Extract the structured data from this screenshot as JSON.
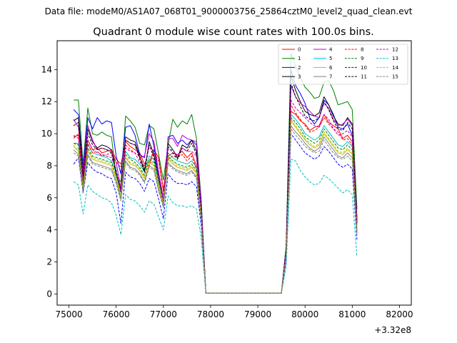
{
  "chart_data": {
    "type": "line",
    "suptitle": "Data file: modeM0/AS1A07_068T01_9000003756_25864cztM0_level2_quad_clean.evt",
    "title": "Quadrant 0 module wise count rates with 100.0s bins.",
    "xlabel": "",
    "ylabel": "",
    "x_offset_label": "+3.32e8",
    "xlim": [
      74750,
      82250
    ],
    "ylim": [
      -0.7,
      15.8
    ],
    "x_ticks": [
      75000,
      76000,
      77000,
      78000,
      79000,
      80000,
      81000,
      82000
    ],
    "x_tick_labels": [
      "75000",
      "76000",
      "77000",
      "78000",
      "79000",
      "80000",
      "81000",
      "82000"
    ],
    "y_ticks": [
      0,
      2,
      4,
      6,
      8,
      10,
      12,
      14
    ],
    "y_tick_labels": [
      "0",
      "2",
      "4",
      "6",
      "8",
      "10",
      "12",
      "14"
    ],
    "legend_position": "top-right",
    "x_start": 75100,
    "x_step": 100,
    "series": [
      {
        "name": "0",
        "color": "#ff0000",
        "dash": "solid",
        "values": [
          9.8,
          9.9,
          7.2,
          9.6,
          9.0,
          9.1,
          8.8,
          8.9,
          9.0,
          8.4,
          8.1,
          9.5,
          9.2,
          9.0,
          8.8,
          8.1,
          8.2,
          9.0,
          8.5,
          6.5,
          8.6,
          8.8,
          8.7,
          8.9,
          8.5,
          8.8,
          8.0,
          5.3,
          0.05,
          0.05,
          0.05,
          0.05,
          0.05,
          0.05,
          0.05,
          0.05,
          0.05,
          0.05,
          0.05,
          0.05,
          0.05,
          0.05,
          0.05,
          0.05,
          0.05,
          2.4,
          11.4,
          11.2,
          10.8,
          10.6,
          10.2,
          10.4,
          10.5,
          11.2,
          10.7,
          10.5,
          10.3,
          9.7,
          9.9,
          9.5,
          4.6
        ]
      },
      {
        "name": "1",
        "color": "#008000",
        "dash": "solid",
        "values": [
          12.1,
          12.1,
          8.1,
          11.6,
          10.0,
          9.9,
          10.1,
          9.9,
          9.8,
          7.3,
          7.0,
          11.1,
          10.8,
          10.4,
          9.4,
          9.3,
          10.5,
          10.3,
          8.7,
          7.1,
          9.3,
          10.9,
          10.4,
          10.8,
          10.6,
          11.2,
          9.7,
          5.9,
          0.05,
          0.05,
          0.05,
          0.05,
          0.05,
          0.05,
          0.05,
          0.05,
          0.05,
          0.05,
          0.05,
          0.05,
          0.05,
          0.05,
          0.05,
          0.05,
          0.05,
          3.0,
          15.0,
          14.2,
          13.5,
          12.9,
          12.6,
          12.2,
          12.3,
          13.2,
          13.3,
          12.7,
          11.8,
          11.9,
          12.0,
          11.5,
          5.3
        ]
      },
      {
        "name": "2",
        "color": "#0000ff",
        "dash": "solid",
        "values": [
          11.5,
          11.2,
          7.8,
          11.0,
          10.3,
          11.0,
          10.6,
          10.8,
          10.7,
          8.6,
          7.5,
          10.4,
          10.5,
          9.9,
          8.7,
          8.5,
          10.6,
          9.2,
          7.3,
          5.4,
          9.8,
          9.9,
          9.4,
          9.6,
          9.3,
          9.6,
          9.3,
          5.8,
          0.05,
          0.05,
          0.05,
          0.05,
          0.05,
          0.05,
          0.05,
          0.05,
          0.05,
          0.05,
          0.05,
          0.05,
          0.05,
          0.05,
          0.05,
          0.05,
          0.05,
          2.9,
          14.0,
          13.0,
          12.5,
          11.9,
          11.0,
          10.6,
          11.0,
          12.1,
          11.8,
          11.2,
          10.4,
          10.3,
          10.6,
          9.9,
          4.8
        ]
      },
      {
        "name": "3",
        "color": "#000000",
        "dash": "solid",
        "values": [
          10.8,
          11.0,
          7.4,
          10.3,
          9.5,
          9.1,
          9.3,
          9.2,
          9.0,
          7.6,
          6.5,
          9.8,
          9.6,
          9.5,
          8.6,
          7.7,
          9.5,
          8.7,
          7.3,
          5.9,
          9.4,
          9.0,
          8.5,
          9.3,
          9.1,
          9.6,
          8.9,
          5.5,
          0.05,
          0.05,
          0.05,
          0.05,
          0.05,
          0.05,
          0.05,
          0.05,
          0.05,
          0.05,
          0.05,
          0.05,
          0.05,
          0.05,
          0.05,
          0.05,
          0.05,
          2.8,
          13.6,
          12.7,
          12.0,
          11.4,
          11.2,
          11.1,
          11.3,
          12.3,
          11.8,
          11.1,
          10.6,
          10.5,
          11.0,
          10.6,
          4.5
        ]
      },
      {
        "name": "4",
        "color": "#bf00bf",
        "dash": "solid",
        "values": [
          10.9,
          10.4,
          7.6,
          10.5,
          9.6,
          9.0,
          9.1,
          9.0,
          8.9,
          8.2,
          6.6,
          9.6,
          9.4,
          9.3,
          8.5,
          8.6,
          10.0,
          9.5,
          7.6,
          6.0,
          9.7,
          9.7,
          9.2,
          9.9,
          9.7,
          9.6,
          9.5,
          5.6,
          0.05,
          0.05,
          0.05,
          0.05,
          0.05,
          0.05,
          0.05,
          0.05,
          0.05,
          0.05,
          0.05,
          0.05,
          0.05,
          0.05,
          0.05,
          0.05,
          0.05,
          2.8,
          13.0,
          12.3,
          11.9,
          11.7,
          11.4,
          11.1,
          11.0,
          11.9,
          11.6,
          10.9,
          10.5,
          10.6,
          10.9,
          10.5,
          4.6
        ]
      },
      {
        "name": "5",
        "color": "#00bfbf",
        "dash": "solid",
        "values": [
          9.4,
          9.4,
          6.8,
          9.3,
          8.8,
          8.7,
          8.6,
          8.5,
          8.3,
          7.6,
          6.3,
          8.9,
          8.5,
          8.4,
          8.1,
          7.6,
          8.6,
          8.4,
          7.0,
          5.9,
          8.8,
          8.5,
          8.3,
          8.2,
          8.1,
          8.3,
          7.9,
          5.0,
          0.05,
          0.05,
          0.05,
          0.05,
          0.05,
          0.05,
          0.05,
          0.05,
          0.05,
          0.05,
          0.05,
          0.05,
          0.05,
          0.05,
          0.05,
          0.05,
          0.05,
          2.5,
          11.2,
          10.9,
          10.5,
          10.0,
          9.8,
          9.6,
          9.8,
          10.5,
          10.1,
          9.7,
          9.3,
          9.2,
          9.5,
          9.2,
          4.1
        ]
      },
      {
        "name": "6",
        "color": "#bfbf00",
        "dash": "solid",
        "values": [
          9.2,
          8.9,
          6.5,
          8.9,
          8.4,
          8.3,
          8.2,
          8.1,
          8.0,
          7.2,
          6.0,
          8.5,
          8.1,
          8.0,
          7.7,
          7.2,
          8.2,
          8.0,
          6.7,
          5.6,
          8.4,
          8.1,
          7.9,
          7.8,
          7.7,
          7.9,
          7.5,
          4.8,
          0.05,
          0.05,
          0.05,
          0.05,
          0.05,
          0.05,
          0.05,
          0.05,
          0.05,
          0.05,
          0.05,
          0.05,
          0.05,
          0.05,
          0.05,
          0.05,
          0.05,
          2.4,
          10.8,
          10.4,
          10.0,
          9.6,
          9.3,
          9.1,
          9.3,
          10.0,
          9.6,
          9.2,
          8.8,
          8.7,
          9.0,
          8.7,
          3.9
        ]
      },
      {
        "name": "7",
        "color": "#808080",
        "dash": "solid",
        "values": [
          9.0,
          8.7,
          6.4,
          8.7,
          8.2,
          8.1,
          8.0,
          7.9,
          7.8,
          7.0,
          5.9,
          8.3,
          7.9,
          7.8,
          7.5,
          7.0,
          8.0,
          7.8,
          6.5,
          5.5,
          8.2,
          7.9,
          7.7,
          7.6,
          7.5,
          7.7,
          7.3,
          4.7,
          0.05,
          0.05,
          0.05,
          0.05,
          0.05,
          0.05,
          0.05,
          0.05,
          0.05,
          0.05,
          0.05,
          0.05,
          0.05,
          0.05,
          0.05,
          0.05,
          0.05,
          2.3,
          10.5,
          10.1,
          9.8,
          9.4,
          9.1,
          8.9,
          9.1,
          9.8,
          9.4,
          9.0,
          8.6,
          8.5,
          8.8,
          8.5,
          3.8
        ]
      },
      {
        "name": "8",
        "color": "#ff0000",
        "dash": "dashed",
        "values": [
          9.7,
          10.0,
          7.0,
          9.4,
          8.8,
          8.9,
          8.6,
          8.7,
          8.8,
          8.2,
          7.9,
          9.3,
          9.0,
          8.8,
          8.6,
          7.9,
          8.0,
          8.8,
          8.3,
          6.4,
          8.4,
          8.6,
          8.5,
          8.7,
          8.3,
          8.6,
          7.8,
          5.2,
          0.05,
          0.05,
          0.05,
          0.05,
          0.05,
          0.05,
          0.05,
          0.05,
          0.05,
          0.05,
          0.05,
          0.05,
          0.05,
          0.05,
          0.05,
          0.05,
          0.05,
          2.4,
          11.8,
          11.3,
          10.9,
          10.5,
          10.1,
          10.2,
          10.4,
          11.0,
          10.6,
          10.3,
          10.1,
          9.6,
          9.7,
          9.3,
          4.5
        ]
      },
      {
        "name": "9",
        "color": "#008000",
        "dash": "dashed",
        "values": [
          9.4,
          9.3,
          6.8,
          9.1,
          8.6,
          8.5,
          8.4,
          8.3,
          8.2,
          7.4,
          6.2,
          8.7,
          8.4,
          8.2,
          7.9,
          7.4,
          8.4,
          8.2,
          6.9,
          5.7,
          8.6,
          8.3,
          8.1,
          8.0,
          7.9,
          8.1,
          7.7,
          4.9,
          0.05,
          0.05,
          0.05,
          0.05,
          0.05,
          0.05,
          0.05,
          0.05,
          0.05,
          0.05,
          0.05,
          0.05,
          0.05,
          0.05,
          0.05,
          0.05,
          0.05,
          2.5,
          11.0,
          10.7,
          10.3,
          9.8,
          9.6,
          9.4,
          9.6,
          10.3,
          9.9,
          9.5,
          9.1,
          9.0,
          9.3,
          9.0,
          4.0
        ]
      },
      {
        "name": "10",
        "color": "#0000ff",
        "dash": "dashed",
        "values": [
          8.1,
          8.5,
          6.3,
          8.2,
          7.8,
          7.6,
          7.5,
          7.3,
          7.2,
          6.3,
          4.4,
          7.6,
          7.3,
          7.2,
          6.9,
          6.4,
          7.2,
          7.0,
          5.9,
          4.7,
          7.5,
          7.1,
          6.9,
          6.9,
          6.8,
          7.0,
          6.7,
          4.3,
          0.05,
          0.05,
          0.05,
          0.05,
          0.05,
          0.05,
          0.05,
          0.05,
          0.05,
          0.05,
          0.05,
          0.05,
          0.05,
          0.05,
          0.05,
          0.05,
          0.05,
          2.1,
          10.0,
          9.6,
          9.2,
          8.8,
          8.6,
          8.4,
          8.6,
          9.2,
          8.9,
          8.5,
          8.1,
          7.9,
          8.1,
          7.8,
          3.4
        ]
      },
      {
        "name": "11",
        "color": "#000000",
        "dash": "dashed",
        "values": [
          10.5,
          10.7,
          7.3,
          10.0,
          9.3,
          9.0,
          9.1,
          9.0,
          8.8,
          7.5,
          6.4,
          9.6,
          9.4,
          9.3,
          8.4,
          7.6,
          9.3,
          8.5,
          7.2,
          5.8,
          9.2,
          8.8,
          8.4,
          9.1,
          8.9,
          9.4,
          8.7,
          5.4,
          0.05,
          0.05,
          0.05,
          0.05,
          0.05,
          0.05,
          0.05,
          0.05,
          0.05,
          0.05,
          0.05,
          0.05,
          0.05,
          0.05,
          0.05,
          0.05,
          0.05,
          2.7,
          13.2,
          12.3,
          11.7,
          11.1,
          10.9,
          10.8,
          11.0,
          12.0,
          11.5,
          10.8,
          10.3,
          10.2,
          10.7,
          10.3,
          4.4
        ]
      },
      {
        "name": "12",
        "color": "#bf00bf",
        "dash": "dashed",
        "values": [
          9.9,
          9.7,
          7.1,
          9.6,
          9.0,
          8.8,
          8.7,
          8.6,
          8.5,
          7.8,
          6.4,
          9.1,
          8.9,
          8.8,
          8.2,
          8.0,
          9.2,
          8.9,
          7.2,
          5.8,
          9.0,
          9.0,
          8.6,
          9.1,
          8.9,
          8.9,
          8.6,
          5.3,
          0.05,
          0.05,
          0.05,
          0.05,
          0.05,
          0.05,
          0.05,
          0.05,
          0.05,
          0.05,
          0.05,
          0.05,
          0.05,
          0.05,
          0.05,
          0.05,
          0.05,
          2.6,
          12.1,
          11.6,
          11.3,
          11.0,
          10.7,
          10.5,
          10.4,
          11.2,
          10.9,
          10.3,
          9.9,
          10.0,
          10.2,
          9.8,
          4.3
        ]
      },
      {
        "name": "13",
        "color": "#00bfbf",
        "dash": "dashed",
        "values": [
          7.0,
          6.8,
          5.0,
          6.8,
          6.4,
          6.2,
          6.0,
          5.9,
          5.7,
          4.9,
          3.7,
          6.2,
          5.9,
          5.8,
          5.5,
          5.1,
          5.8,
          5.6,
          4.8,
          4.0,
          6.1,
          5.7,
          5.5,
          5.5,
          5.4,
          5.5,
          5.3,
          3.5,
          0.05,
          0.05,
          0.05,
          0.05,
          0.05,
          0.05,
          0.05,
          0.05,
          0.05,
          0.05,
          0.05,
          0.05,
          0.05,
          0.05,
          0.05,
          0.05,
          0.05,
          1.7,
          8.4,
          8.3,
          7.7,
          7.3,
          7.0,
          6.8,
          6.9,
          7.4,
          7.2,
          6.9,
          6.6,
          6.3,
          6.5,
          6.2,
          2.3
        ]
      },
      {
        "name": "14",
        "color": "#bfbf00",
        "dash": "dashed",
        "values": [
          9.3,
          9.0,
          6.6,
          9.0,
          8.5,
          8.4,
          8.3,
          8.2,
          8.1,
          7.3,
          6.1,
          8.6,
          8.2,
          8.1,
          7.8,
          7.3,
          8.3,
          8.1,
          6.8,
          5.7,
          8.5,
          8.2,
          8.0,
          7.9,
          7.8,
          8.0,
          7.6,
          4.9,
          0.05,
          0.05,
          0.05,
          0.05,
          0.05,
          0.05,
          0.05,
          0.05,
          0.05,
          0.05,
          0.05,
          0.05,
          0.05,
          0.05,
          0.05,
          0.05,
          0.05,
          2.4,
          10.9,
          10.5,
          10.1,
          9.7,
          9.4,
          9.2,
          9.4,
          10.1,
          9.7,
          9.3,
          8.9,
          8.8,
          9.1,
          8.8,
          3.9
        ]
      },
      {
        "name": "15",
        "color": "#808080",
        "dash": "dashed",
        "values": [
          8.8,
          8.6,
          6.3,
          8.6,
          8.1,
          8.0,
          7.9,
          7.8,
          7.7,
          6.9,
          5.8,
          8.2,
          7.8,
          7.7,
          7.4,
          6.9,
          7.9,
          7.7,
          6.4,
          5.4,
          8.1,
          7.8,
          7.6,
          7.5,
          7.4,
          7.6,
          7.2,
          4.6,
          0.05,
          0.05,
          0.05,
          0.05,
          0.05,
          0.05,
          0.05,
          0.05,
          0.05,
          0.05,
          0.05,
          0.05,
          0.05,
          0.05,
          0.05,
          0.05,
          0.05,
          2.3,
          10.3,
          9.9,
          9.6,
          9.2,
          9.0,
          8.8,
          8.9,
          9.6,
          9.2,
          8.8,
          8.5,
          8.4,
          8.6,
          8.3,
          3.7
        ]
      }
    ]
  }
}
